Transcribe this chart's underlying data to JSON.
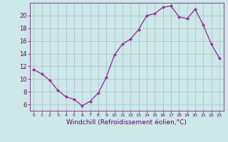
{
  "x": [
    0,
    1,
    2,
    3,
    4,
    5,
    6,
    7,
    8,
    9,
    10,
    11,
    12,
    13,
    14,
    15,
    16,
    17,
    18,
    19,
    20,
    21,
    22,
    23
  ],
  "y": [
    11.5,
    10.8,
    9.8,
    8.2,
    7.2,
    6.8,
    5.8,
    6.5,
    7.8,
    10.3,
    13.8,
    15.5,
    16.3,
    17.8,
    20.0,
    20.3,
    21.3,
    21.5,
    19.8,
    19.5,
    21.0,
    18.5,
    15.5,
    13.3
  ],
  "line_color": "#993399",
  "marker": "D",
  "marker_size": 2,
  "bg_color": "#cce8e8",
  "grid_color": "#aabbcc",
  "xlabel": "Windchill (Refroidissement éolien,°C)",
  "ylim": [
    5.0,
    22.0
  ],
  "yticks": [
    6,
    8,
    10,
    12,
    14,
    16,
    18,
    20
  ],
  "xticks": [
    0,
    1,
    2,
    3,
    4,
    5,
    6,
    7,
    8,
    9,
    10,
    11,
    12,
    13,
    14,
    15,
    16,
    17,
    18,
    19,
    20,
    21,
    22,
    23
  ],
  "xlabel_fontsize": 6.5,
  "tick_fontsize": 6,
  "line_width": 1.0,
  "text_color": "#660066"
}
